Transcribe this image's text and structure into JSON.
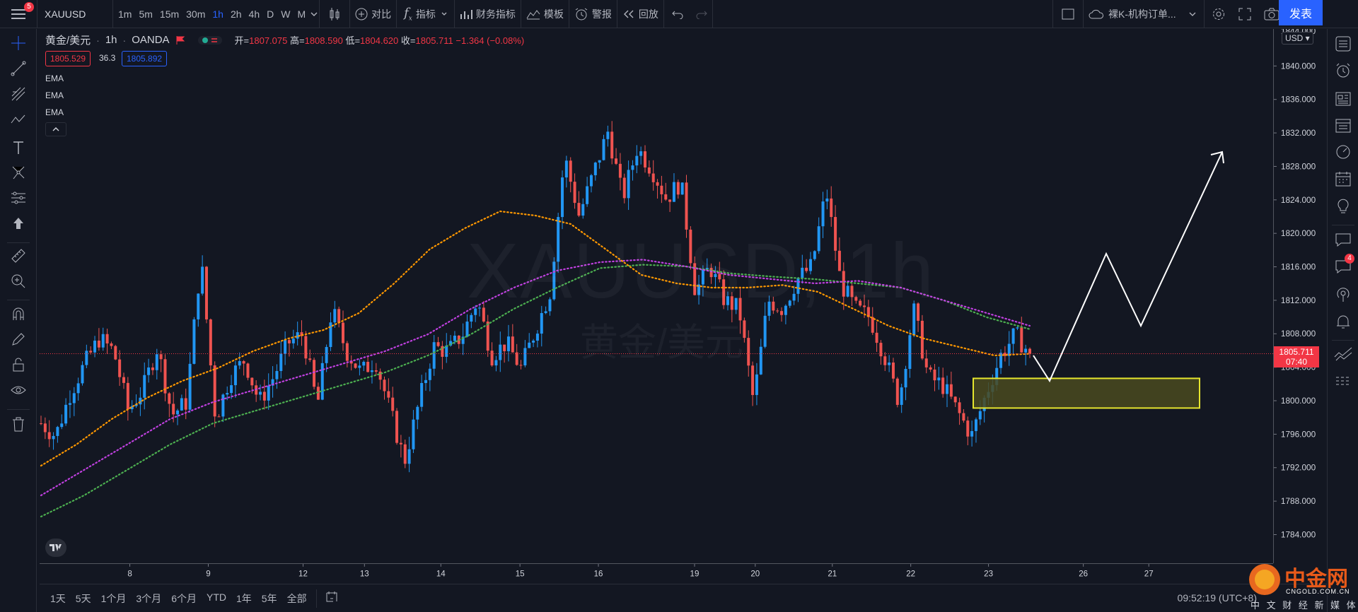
{
  "app": {
    "menu_badge": "5",
    "symbol": "XAUUSD",
    "publish": "发表"
  },
  "toolbar": {
    "intervals": [
      "1m",
      "5m",
      "15m",
      "30m",
      "1h",
      "2h",
      "4h",
      "D",
      "W",
      "M"
    ],
    "active_interval": "1h",
    "compare": "对比",
    "indicators": "指标",
    "financials": "财务指标",
    "templates": "模板",
    "alert": "警报",
    "replay": "回放",
    "layout_name": "裸K-机构订单..."
  },
  "legend": {
    "title": "黄金/美元",
    "interval": "1h",
    "source": "OANDA",
    "open_label": "开=",
    "open": "1807.075",
    "high_label": "高=",
    "high": "1808.590",
    "low_label": "低=",
    "low": "1804.620",
    "close_label": "收=",
    "close": "1805.711",
    "change": "−1.364 (−0.08%)",
    "bid": "1805.529",
    "spread": "36.3",
    "ask": "1805.892",
    "emas": [
      "EMA",
      "EMA",
      "EMA"
    ]
  },
  "axis": {
    "currency": "USD",
    "last_price": "1805.711",
    "countdown": "07:40",
    "x_ticks": [
      "8",
      "9",
      "12",
      "13",
      "14",
      "15",
      "16",
      "19",
      "20",
      "21",
      "22",
      "23",
      "26",
      "27"
    ],
    "top_clipped": "1844.000"
  },
  "watermark": {
    "symbol": "XAUUSD, 1h",
    "name": "黄金/美元"
  },
  "bottom": {
    "ranges": [
      "1天",
      "5天",
      "1个月",
      "3个月",
      "6个月",
      "YTD",
      "1年",
      "5年",
      "全部"
    ],
    "clock": "09:52:19 (UTC+8)"
  },
  "brand": {
    "name": "中金网",
    "domain": "CNGOLD.COM.CN",
    "slogan": "中 文 财 经 新 媒 体",
    "alerts_badge": "4"
  },
  "colors": {
    "bull": "#2196f3",
    "bear": "#ef5350",
    "ema_fast": "#ff9800",
    "ema_mid": "#c040e0",
    "ema_slow": "#4caf50",
    "zone_fill": "#4a4a1e",
    "zone_stroke": "#e6e62e"
  },
  "chart_data": {
    "type": "candlestick",
    "title": "黄金/美元 1h OANDA",
    "ylim": [
      1781,
      1844
    ],
    "y_ticks": [
      1784,
      1788,
      1792,
      1796,
      1800,
      1804,
      1808,
      1812,
      1816,
      1820,
      1824,
      1828,
      1832,
      1836,
      1840
    ],
    "x_categories": [
      "8",
      "9",
      "12",
      "13",
      "14",
      "15",
      "16",
      "19",
      "20",
      "21",
      "22",
      "23",
      "26",
      "27"
    ],
    "path_price": [
      1797.5,
      1796,
      1801,
      1804.5,
      1807.5,
      1806,
      1799,
      1801.5,
      1806.5,
      1798.5,
      1800,
      1817,
      1798,
      1803,
      1805,
      1800,
      1803,
      1807,
      1808,
      1799.5,
      1811,
      1806,
      1803.5,
      1805,
      1799,
      1793,
      1800,
      1806.5,
      1806,
      1808,
      1812,
      1805.5,
      1807,
      1804,
      1808.5,
      1813,
      1829,
      1822,
      1827,
      1832,
      1824,
      1830,
      1827.5,
      1824,
      1826,
      1813,
      1816,
      1812,
      1811,
      1800,
      1812,
      1811,
      1814.5,
      1816,
      1825,
      1814,
      1811,
      1810,
      1805.5,
      1800,
      1811,
      1803,
      1802,
      1799,
      1796,
      1801,
      1805.5,
      1808,
      1805.711
    ],
    "ema_fast": [
      1792.5,
      1795,
      1798,
      1800.5,
      1802.5,
      1804,
      1806,
      1807.5,
      1808.5,
      1810.5,
      1814,
      1818,
      1820.5,
      1822.5,
      1822,
      1821,
      1818,
      1815,
      1814,
      1813.5,
      1813.5,
      1813.8,
      1813,
      1811,
      1809,
      1807.5,
      1806.5,
      1805.5,
      1805.7
    ],
    "ema_mid": [
      1789,
      1792,
      1795,
      1798,
      1800,
      1801.5,
      1803,
      1804.5,
      1806,
      1808,
      1811,
      1813.5,
      1815.5,
      1816.5,
      1816.8,
      1816,
      1815,
      1814.5,
      1814,
      1814.3,
      1813.5,
      1812,
      1810.5,
      1809
    ],
    "ema_slow": [
      1786.5,
      1789,
      1792,
      1795,
      1797.5,
      1799,
      1800.5,
      1802,
      1803.5,
      1805.5,
      1808,
      1811,
      1813.5,
      1815.8,
      1816.2,
      1816,
      1815.2,
      1814.8,
      1814.5,
      1814,
      1813.5,
      1812,
      1810,
      1808.6
    ],
    "zone": {
      "top": 1802.8,
      "bottom": 1799.3,
      "label": ""
    },
    "projection": [
      1805.5,
      1802.5,
      1817.5,
      1809,
      1829.5
    ]
  }
}
